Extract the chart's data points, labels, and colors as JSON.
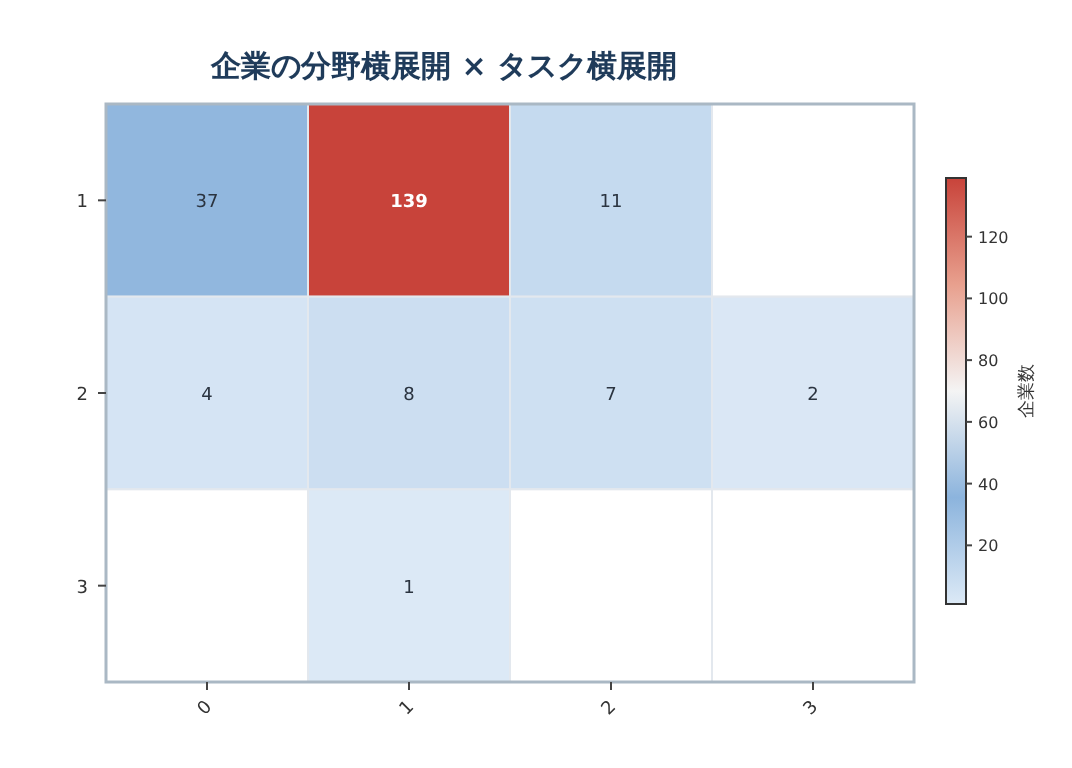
{
  "chart_data": {
    "type": "heatmap",
    "title": "企業の分野横展開 × タスク横展開",
    "clabel": "企業数",
    "categories": [
      "0",
      "1",
      "2",
      "3"
    ],
    "y_categories": [
      "1",
      "2",
      "3"
    ],
    "cells": [
      [
        37,
        139,
        11,
        null
      ],
      [
        4,
        8,
        7,
        2
      ],
      [
        null,
        1,
        null,
        null
      ]
    ],
    "data_labels": true,
    "clim": [
      1,
      139
    ],
    "cticks": [
      20,
      40,
      60,
      80,
      100,
      120
    ],
    "colors": [
      "#dce9f6",
      "#8cb4dd",
      "#f4f4f4",
      "#e8a08e",
      "#c8433a"
    ]
  }
}
